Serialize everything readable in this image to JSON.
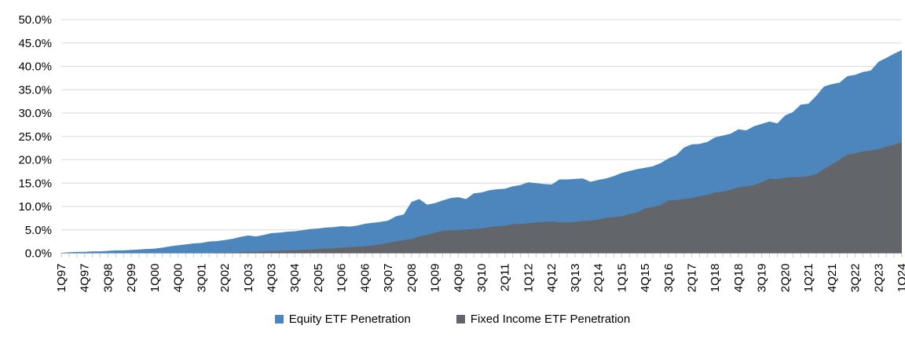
{
  "chart_data": {
    "type": "area",
    "title": "",
    "xlabel": "",
    "ylabel": "",
    "ylim": [
      0,
      50
    ],
    "y_ticks": [
      "0.0%",
      "5.0%",
      "10.0%",
      "15.0%",
      "20.0%",
      "25.0%",
      "30.0%",
      "35.0%",
      "40.0%",
      "45.0%",
      "50.0%"
    ],
    "grid": "horizontal",
    "legend_position": "bottom",
    "label_step": 3,
    "x_tick_labels": [
      "1Q97",
      "4Q97",
      "3Q98",
      "2Q99",
      "1Q00",
      "4Q00",
      "3Q01",
      "2Q02",
      "1Q03",
      "4Q03",
      "3Q04",
      "2Q05",
      "1Q06",
      "4Q06",
      "3Q07",
      "2Q08",
      "1Q09",
      "4Q09",
      "3Q10",
      "2Q11",
      "1Q12",
      "4Q12",
      "3Q13",
      "2Q14",
      "1Q15",
      "4Q15",
      "3Q16",
      "2Q17",
      "1Q18",
      "4Q18",
      "3Q19",
      "2Q20",
      "1Q21",
      "4Q21",
      "3Q22",
      "2Q23",
      "1Q24"
    ],
    "x_unit": "quarterly from 1Q97 to 1Q24",
    "series": [
      {
        "name": "Equity ETF Penetration",
        "key": "equity-etf-penetration",
        "color": "#4D86BD",
        "values": [
          0.1,
          0.2,
          0.3,
          0.3,
          0.4,
          0.4,
          0.5,
          0.6,
          0.6,
          0.7,
          0.8,
          0.9,
          1.0,
          1.2,
          1.5,
          1.7,
          1.9,
          2.1,
          2.2,
          2.5,
          2.6,
          2.8,
          3.1,
          3.5,
          3.8,
          3.6,
          3.9,
          4.3,
          4.4,
          4.6,
          4.7,
          4.9,
          5.2,
          5.3,
          5.5,
          5.6,
          5.8,
          5.7,
          5.9,
          6.3,
          6.5,
          6.7,
          7.0,
          7.9,
          8.3,
          11.0,
          11.6,
          10.4,
          10.7,
          11.3,
          11.8,
          12.0,
          11.6,
          12.8,
          13.0,
          13.5,
          13.7,
          13.8,
          14.3,
          14.6,
          15.2,
          15.0,
          14.8,
          14.7,
          15.8,
          15.8,
          15.9,
          16.0,
          15.3,
          15.7,
          16.0,
          16.5,
          17.2,
          17.6,
          18.0,
          18.3,
          18.6,
          19.3,
          20.3,
          21.0,
          22.6,
          23.3,
          23.4,
          23.8,
          24.8,
          25.2,
          25.6,
          26.5,
          26.3,
          27.2,
          27.7,
          28.2,
          27.8,
          29.5,
          30.2,
          31.8,
          32.0,
          33.7,
          35.7,
          36.2,
          36.5,
          37.9,
          38.2,
          38.8,
          39.1,
          41.0,
          41.8,
          42.7,
          43.5
        ]
      },
      {
        "name": "Fixed Income ETF Penetration",
        "key": "fixed-income-etf-penetration",
        "color": "#626569",
        "values": [
          0,
          0,
          0,
          0,
          0,
          0,
          0,
          0,
          0,
          0,
          0,
          0,
          0,
          0,
          0,
          0,
          0,
          0,
          0,
          0,
          0.1,
          0.1,
          0.1,
          0.2,
          0.3,
          0.3,
          0.4,
          0.5,
          0.5,
          0.6,
          0.6,
          0.7,
          0.8,
          0.9,
          1.0,
          1.1,
          1.2,
          1.3,
          1.4,
          1.5,
          1.7,
          1.9,
          2.2,
          2.5,
          2.8,
          3.0,
          3.6,
          3.9,
          4.4,
          4.8,
          4.9,
          4.9,
          5.1,
          5.2,
          5.3,
          5.6,
          5.8,
          5.9,
          6.2,
          6.3,
          6.4,
          6.6,
          6.7,
          6.8,
          6.6,
          6.6,
          6.7,
          6.9,
          7.0,
          7.2,
          7.6,
          7.7,
          7.9,
          8.4,
          8.7,
          9.6,
          9.9,
          10.3,
          11.3,
          11.4,
          11.6,
          11.8,
          12.2,
          12.5,
          13.0,
          13.2,
          13.6,
          14.1,
          14.3,
          14.6,
          15.2,
          16.0,
          15.8,
          16.2,
          16.3,
          16.3,
          16.5,
          16.9,
          18.0,
          19.0,
          20.0,
          21.1,
          21.4,
          21.8,
          22.0,
          22.3,
          22.8,
          23.2,
          23.8
        ]
      }
    ],
    "colors": {
      "gridline": "#D9D9D9",
      "tick": "#C9C9C9",
      "axis_text": "#000000"
    }
  }
}
